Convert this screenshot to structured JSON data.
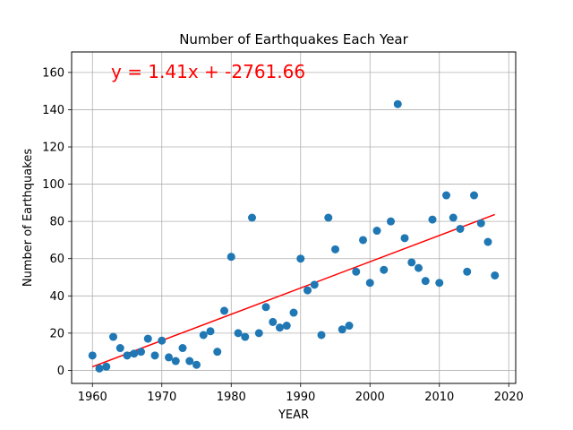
{
  "chart_data": {
    "type": "scatter",
    "title": "Number of Earthquakes Each Year",
    "xlabel": "YEAR",
    "ylabel": "Number of Earthquakes",
    "xlim": [
      1957,
      2021
    ],
    "ylim": [
      -7,
      171
    ],
    "xticks": [
      1960,
      1970,
      1980,
      1990,
      2000,
      2010,
      2020
    ],
    "yticks": [
      0,
      20,
      40,
      60,
      80,
      100,
      120,
      140,
      160
    ],
    "grid": true,
    "point_color": "#1f77b4",
    "line_color": "#ff0000",
    "annotation": "y = 1.41x + -2761.66",
    "regression": {
      "slope": 1.41,
      "intercept": -2761.66,
      "x_range": [
        1960,
        2018
      ]
    },
    "points": [
      [
        1960,
        8
      ],
      [
        1961,
        1
      ],
      [
        1962,
        2
      ],
      [
        1963,
        18
      ],
      [
        1964,
        12
      ],
      [
        1965,
        8
      ],
      [
        1966,
        9
      ],
      [
        1967,
        10
      ],
      [
        1968,
        17
      ],
      [
        1969,
        8
      ],
      [
        1970,
        16
      ],
      [
        1971,
        7
      ],
      [
        1972,
        5
      ],
      [
        1973,
        12
      ],
      [
        1974,
        5
      ],
      [
        1975,
        3
      ],
      [
        1976,
        19
      ],
      [
        1977,
        21
      ],
      [
        1978,
        10
      ],
      [
        1979,
        32
      ],
      [
        1980,
        61
      ],
      [
        1981,
        20
      ],
      [
        1982,
        18
      ],
      [
        1983,
        82
      ],
      [
        1984,
        20
      ],
      [
        1985,
        34
      ],
      [
        1986,
        26
      ],
      [
        1987,
        23
      ],
      [
        1988,
        24
      ],
      [
        1989,
        31
      ],
      [
        1990,
        60
      ],
      [
        1991,
        43
      ],
      [
        1992,
        46
      ],
      [
        1993,
        19
      ],
      [
        1994,
        82
      ],
      [
        1995,
        65
      ],
      [
        1996,
        22
      ],
      [
        1997,
        24
      ],
      [
        1998,
        53
      ],
      [
        1999,
        70
      ],
      [
        2000,
        47
      ],
      [
        2001,
        75
      ],
      [
        2002,
        54
      ],
      [
        2003,
        80
      ],
      [
        2004,
        143
      ],
      [
        2005,
        71
      ],
      [
        2006,
        58
      ],
      [
        2007,
        55
      ],
      [
        2008,
        48
      ],
      [
        2009,
        81
      ],
      [
        2010,
        47
      ],
      [
        2011,
        94
      ],
      [
        2012,
        82
      ],
      [
        2013,
        76
      ],
      [
        2014,
        53
      ],
      [
        2015,
        94
      ],
      [
        2016,
        79
      ],
      [
        2017,
        69
      ],
      [
        2018,
        51
      ]
    ]
  }
}
